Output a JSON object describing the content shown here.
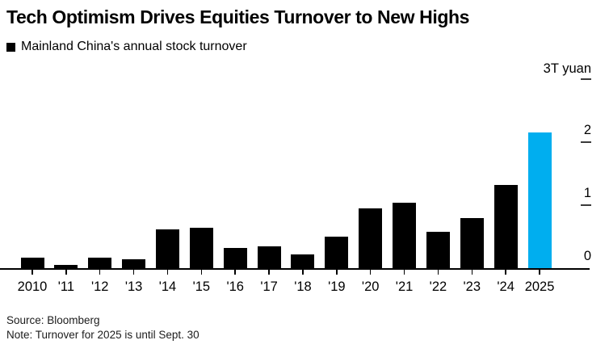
{
  "title": "Tech Optimism Drives Equities Turnover to New Highs",
  "legend": {
    "label": "Mainland China's annual stock turnover",
    "swatch_color": "#000000"
  },
  "chart_data": {
    "type": "bar",
    "categories": [
      "2010",
      "'11",
      "'12",
      "'13",
      "'14",
      "'15",
      "'16",
      "'17",
      "'18",
      "'19",
      "'20",
      "'21",
      "'22",
      "'23",
      "'24",
      "2025"
    ],
    "values": [
      0.18,
      0.07,
      0.18,
      0.15,
      0.63,
      0.66,
      0.33,
      0.36,
      0.23,
      0.51,
      0.96,
      1.05,
      0.59,
      0.81,
      1.33,
      2.17
    ],
    "highlight_index": 15,
    "colors": {
      "bar_default": "#000000",
      "bar_highlight": "#00AEEF"
    },
    "unit_label": "3T yuan",
    "ylabel": "3T yuan",
    "xlabel": "",
    "title": "",
    "ylim": [
      0,
      3
    ],
    "ytick_labels": [
      2,
      1,
      0
    ],
    "ytick_dashes": [
      3,
      2,
      1
    ],
    "grid": false,
    "axis_side": "right",
    "legend_position": "top-left"
  },
  "footer": {
    "source": "Source: Bloomberg",
    "note": "Note: Turnover for 2025 is until Sept. 30"
  }
}
